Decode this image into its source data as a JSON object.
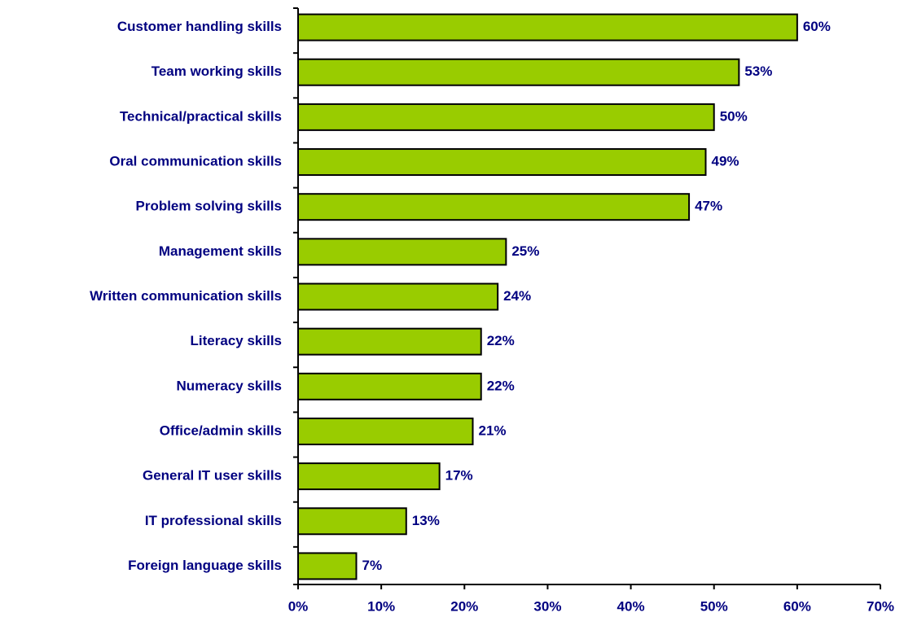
{
  "chart_data": {
    "type": "bar",
    "orientation": "horizontal",
    "categories": [
      "Customer handling skills",
      "Team working skills",
      "Technical/practical skills",
      "Oral communication skills",
      "Problem solving skills",
      "Management skills",
      "Written communication skills",
      "Literacy skills",
      "Numeracy skills",
      "Office/admin skills",
      "General IT user skills",
      "IT professional skills",
      "Foreign language skills"
    ],
    "values": [
      60,
      53,
      50,
      49,
      47,
      25,
      24,
      22,
      22,
      21,
      17,
      13,
      7
    ],
    "value_labels": [
      "60%",
      "53%",
      "50%",
      "49%",
      "47%",
      "25%",
      "24%",
      "22%",
      "22%",
      "21%",
      "17%",
      "13%",
      "7%"
    ],
    "color": "#99cc00",
    "xlim": [
      0,
      70
    ],
    "xticks": [
      {
        "value": 0,
        "label": "0%"
      },
      {
        "value": 10,
        "label": "10%"
      },
      {
        "value": 20,
        "label": "20%"
      },
      {
        "value": 30,
        "label": "30%"
      },
      {
        "value": 40,
        "label": "40%"
      },
      {
        "value": 50,
        "label": "50%"
      },
      {
        "value": 60,
        "label": "60%"
      },
      {
        "value": 70,
        "label": "70%"
      }
    ],
    "grid": false
  }
}
